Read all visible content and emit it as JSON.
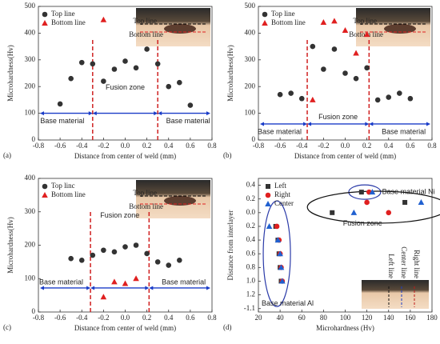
{
  "chart_data": [
    {
      "type": "scatter",
      "label": "(a)",
      "xlabel": "Distance from center of weld (mm)",
      "ylabel": "Microhardness(Hv)",
      "xlim": [
        -0.8,
        0.8
      ],
      "xticks": [
        -0.8,
        -0.6,
        -0.4,
        -0.2,
        {
          "value": 0,
          "label": "0.0"
        },
        0.2,
        0.4,
        0.6,
        0.8
      ],
      "ylim": [
        0,
        500
      ],
      "yticks": [
        0,
        100,
        200,
        300,
        400,
        500
      ],
      "series": [
        {
          "name": "Top line",
          "color": "#333333",
          "marker": "circle",
          "x": [
            -0.6,
            -0.5,
            -0.4,
            -0.3,
            -0.2,
            -0.1,
            0,
            0.1,
            0.2,
            0.3,
            0.4,
            0.5,
            0.6
          ],
          "values": [
            135,
            230,
            290,
            285,
            220,
            265,
            295,
            270,
            340,
            285,
            200,
            215,
            130
          ]
        },
        {
          "name": "Bottom line",
          "color": "#e02020",
          "marker": "triangle",
          "x": [
            -0.2
          ],
          "values": [
            450
          ]
        }
      ],
      "boundaries": [
        -0.3,
        0.3
      ],
      "zones": [
        "Base material",
        "Fusion zone",
        "Base material"
      ],
      "inset_labels": [
        "Top line",
        "Bottom line"
      ]
    },
    {
      "type": "scatter",
      "label": "(b)",
      "xlabel": "Distance from center of weld (mm)",
      "ylabel": "Microhardness(Hv)",
      "xlim": [
        -0.8,
        0.8
      ],
      "xticks": [
        -0.8,
        -0.6,
        -0.4,
        -0.2,
        {
          "value": 0,
          "label": "0.0"
        },
        0.2,
        0.4,
        0.6,
        0.8
      ],
      "ylim": [
        0,
        500
      ],
      "yticks": [
        0,
        100,
        200,
        300,
        400,
        500
      ],
      "series": [
        {
          "name": "Top line",
          "color": "#333333",
          "marker": "circle",
          "x": [
            -0.6,
            -0.5,
            -0.4,
            -0.3,
            -0.2,
            -0.1,
            0,
            0.1,
            0.2,
            0.3,
            0.4,
            0.5,
            0.6
          ],
          "values": [
            170,
            175,
            155,
            350,
            265,
            340,
            250,
            230,
            270,
            150,
            160,
            175,
            155
          ]
        },
        {
          "name": "Bottom line",
          "color": "#e02020",
          "marker": "triangle",
          "x": [
            -0.3,
            -0.2,
            -0.1,
            0,
            0.1,
            0.2
          ],
          "values": [
            150,
            440,
            445,
            410,
            325,
            395
          ]
        }
      ],
      "boundaries": [
        -0.35,
        0.22
      ],
      "zones": [
        "Base material",
        "Fusion zone",
        "Base material"
      ],
      "inset_labels": [
        "Top line",
        "Bottom line"
      ]
    },
    {
      "type": "scatter",
      "label": "(c)",
      "xlabel": "Distance from center of weld (mm)",
      "ylabel": "Microhardness(Hv)",
      "xlim": [
        -0.8,
        0.8
      ],
      "xticks": [
        -0.8,
        -0.6,
        -0.4,
        -0.2,
        {
          "value": 0,
          "label": "0.0"
        },
        0.2,
        0.4,
        0.6,
        0.8
      ],
      "ylim": [
        0,
        400
      ],
      "yticks": [
        0,
        100,
        200,
        300,
        400
      ],
      "series": [
        {
          "name": "Top linc",
          "color": "#333333",
          "marker": "circle",
          "x": [
            -0.5,
            -0.4,
            -0.3,
            -0.2,
            -0.1,
            0,
            0.1,
            0.2,
            0.3,
            0.4,
            0.5
          ],
          "values": [
            160,
            155,
            170,
            185,
            180,
            195,
            200,
            175,
            150,
            140,
            155
          ]
        },
        {
          "name": "Bottom line",
          "color": "#e02020",
          "marker": "triangle",
          "x": [
            -0.2,
            -0.1,
            0,
            0.1
          ],
          "values": [
            45,
            90,
            85,
            100
          ]
        }
      ],
      "boundaries": [
        -0.32,
        0.22
      ],
      "zones": [
        "Base material",
        "Fusion zone",
        "Base material"
      ],
      "inset_labels": [
        "Top line",
        "Bottom line"
      ]
    },
    {
      "type": "scatter",
      "label": "(d)",
      "xlabel": "Microhardness (Hv)",
      "ylabel": "Distance from interlayer",
      "xlim": [
        20,
        180
      ],
      "xticks": [
        20,
        40,
        60,
        80,
        100,
        120,
        140,
        160,
        180
      ],
      "ylim": [
        -1.45,
        0.5
      ],
      "yticks": [
        0.4,
        0.2,
        {
          "value": 0,
          "label": "0.0"
        },
        {
          "value": -0.2,
          "label": "0.2"
        },
        {
          "value": -0.4,
          "label": "0.4"
        },
        {
          "value": -0.6,
          "label": "0.6"
        },
        {
          "value": -0.8,
          "label": "0.8"
        },
        {
          "value": -1.0,
          "label": "1.0"
        },
        {
          "value": -1.2,
          "label": "1.2"
        },
        {
          "value": -1.4,
          "label": "-1.1"
        }
      ],
      "series": [
        {
          "name": "Left",
          "color": "#333333",
          "marker": "square",
          "x": [
            36,
            38,
            39,
            40,
            41,
            88,
            115,
            155
          ],
          "values": [
            -0.2,
            -0.4,
            -0.6,
            -0.8,
            -1.0,
            0,
            0.3,
            0.15
          ]
        },
        {
          "name": "Right",
          "color": "#e02020",
          "marker": "circle",
          "x": [
            37,
            39,
            40,
            41,
            42,
            120,
            122,
            140
          ],
          "values": [
            -0.2,
            -0.4,
            -0.6,
            -0.8,
            -1.0,
            0.15,
            0.3,
            0
          ]
        },
        {
          "name": "Center",
          "color": "#2060d0",
          "marker": "triangle",
          "x": [
            30,
            38,
            40,
            41,
            42,
            108,
            125,
            170
          ],
          "values": [
            -0.2,
            -0.4,
            -0.6,
            -0.8,
            -1.0,
            0,
            0.3,
            0.15
          ]
        }
      ],
      "annotations": [
        "Base material Ni",
        "Fusion zone",
        "Base material Al"
      ],
      "inset_labels": [
        "Right line",
        "Center line",
        "Left line"
      ]
    }
  ]
}
